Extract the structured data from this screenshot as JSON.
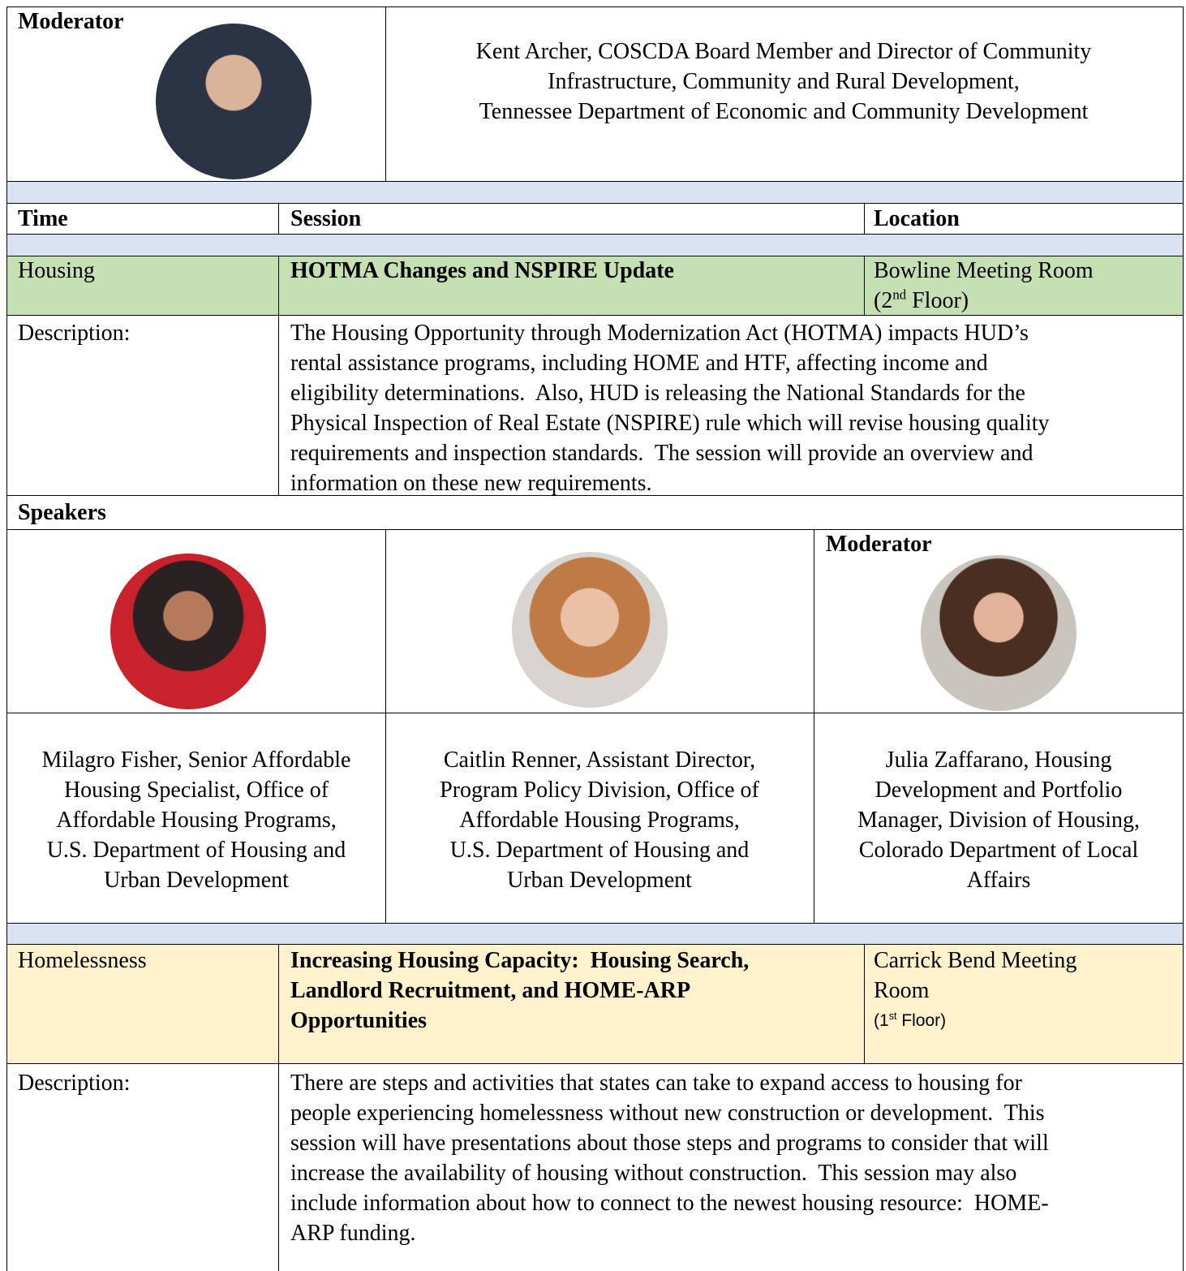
{
  "moderator_block": {
    "label": "Moderator",
    "lines": [
      "Kent Archer, COSCDA Board Member and Director of Community",
      "Infrastructure, Community and Rural Development,",
      "Tennessee Department of Economic and Community Development"
    ]
  },
  "table": {
    "header": [
      "Time",
      "Session",
      "Location"
    ],
    "sessions": [
      {
        "track": "Housing",
        "title_lines": [
          "HOTMA Changes and NSPIRE Update"
        ],
        "location": {
          "lines": [
            "Bowline Meeting Room"
          ],
          "floor": {
            "open": "(2",
            "sup": "nd",
            "rest": " Floor)"
          }
        },
        "description_label": "Description:",
        "description_lines": [
          "The Housing Opportunity through Modernization Act (HOTMA) impacts HUD’s",
          "rental assistance programs, including HOME and HTF, affecting income and",
          "eligibility determinations.  Also, HUD is releasing the National Standards for the",
          "Physical Inspection of Real Estate (NSPIRE) rule which will revise housing quality",
          "requirements and inspection standards.  The session will provide an overview and",
          "information on these new requirements."
        ],
        "speakers_label": "Speakers",
        "speakers": [
          {
            "lines": [
              "Milagro Fisher, Senior Affordable",
              "Housing Specialist, Office of",
              "Affordable Housing Programs,",
              "U.S. Department of Housing and",
              "Urban Development"
            ]
          },
          {
            "lines": [
              "Caitlin Renner, Assistant Director,",
              "Program Policy Division, Office of",
              "Affordable Housing Programs,",
              "U.S. Department of Housing and",
              "Urban Development"
            ]
          },
          {
            "role": "Moderator",
            "lines": [
              "Julia Zaffarano, Housing",
              "Development and Portfolio",
              "Manager, Division of Housing,",
              "Colorado Department of Local",
              "Affairs"
            ]
          }
        ]
      },
      {
        "track": "Homelessness",
        "title_lines": [
          "Increasing Housing Capacity:  Housing Search,",
          "Landlord Recruitment, and HOME-ARP",
          "Opportunities"
        ],
        "location": {
          "lines": [
            "Carrick Bend Meeting",
            "Room"
          ],
          "floor": {
            "open": "(1",
            "sup": "st",
            "rest": " Floor)"
          }
        },
        "description_label": "Description:",
        "description_lines": [
          "There are steps and activities that states can take to expand access to housing for",
          "people experiencing homelessness without new construction or development.  This",
          "session will have presentations about those steps and programs to consider that will",
          "increase the availability of housing without construction.  This session may also",
          "include information about how to connect to the newest housing resource:  HOME-",
          "ARP funding."
        ]
      }
    ]
  }
}
